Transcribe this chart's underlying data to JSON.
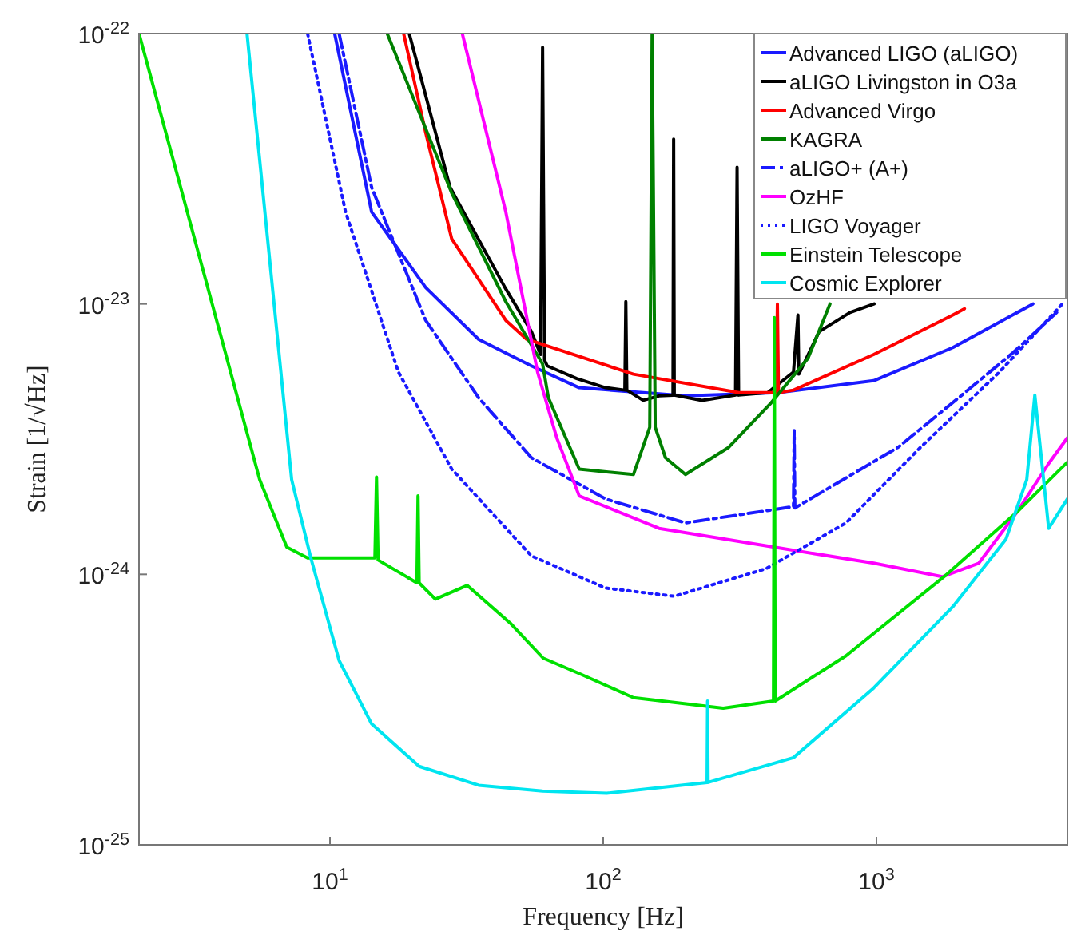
{
  "chart_data": {
    "type": "line",
    "xlabel": "Frequency [Hz]",
    "ylabel": "Strain [1/√Hz]",
    "log": "xy",
    "grid": false,
    "legend": "top right",
    "xlim": [
      2,
      5000
    ],
    "xticks": [
      {
        "value": 10,
        "label": "10$^{1}$"
      },
      {
        "value": 100,
        "label": "10$^{2}$"
      },
      {
        "value": 1000,
        "label": "10$^{3}$"
      }
    ],
    "ylim": [
      1e-25,
      1e-22
    ],
    "yticks": [
      {
        "value": 1e-25,
        "label": "10$^{-25}$"
      },
      {
        "value": 1e-24,
        "label": "10$^{-24}$"
      },
      {
        "value": 1e-23,
        "label": "10$^{-23}$"
      },
      {
        "value": 1e-22,
        "label": "10$^{-22}$"
      }
    ],
    "series": [
      {
        "name": "Advanced LIGO (aLIGO)",
        "color": "#1a1aff",
        "line_style": "solid",
        "x": [
          10.4,
          14.2,
          22.4,
          35,
          54.6,
          81.7,
          200,
          434,
          977,
          1905,
          3740
        ],
        "values": [
          1e-22,
          2.19e-23,
          1.15e-23,
          7.4e-24,
          5.9e-24,
          4.9e-24,
          4.57e-24,
          4.7e-24,
          5.2e-24,
          6.9e-24,
          1e-23
        ]
      },
      {
        "name": "aLIGO Livingston in O3a",
        "color": "#000000",
        "line_style": "solid",
        "x": [
          19.5,
          27.5,
          43.7,
          54.6,
          59,
          60,
          61,
          62.4,
          80,
          102,
          120,
          121,
          122,
          140,
          160,
          180,
          181,
          182,
          230,
          305,
          309,
          313,
          400,
          497,
          516,
          520,
          617,
          800,
          980
        ],
        "values": [
          1e-22,
          2.7e-23,
          1.15e-23,
          7.9e-24,
          6.5e-24,
          8.9e-23,
          6.2e-24,
          5.9e-24,
          5.3e-24,
          4.9e-24,
          4.8e-24,
          1.02e-23,
          4.8e-24,
          4.4e-24,
          4.57e-24,
          4.6e-24,
          4.07e-23,
          4.6e-24,
          4.4e-24,
          4.6e-24,
          3.2e-23,
          4.6e-24,
          4.7e-24,
          5.6e-24,
          9.1e-24,
          5.5e-24,
          7.9e-24,
          9.3e-24,
          1e-23
        ]
      },
      {
        "name": "Advanced Virgo",
        "color": "#ff0000",
        "line_style": "solid",
        "x": [
          18.6,
          22.4,
          27.9,
          44,
          52.5,
          129,
          314,
          430,
          434,
          438,
          497,
          977,
          1905,
          2100
        ],
        "values": [
          1e-22,
          4.3e-23,
          1.74e-23,
          8.7e-24,
          7.4e-24,
          5.5e-24,
          4.7e-24,
          4.7e-24,
          1e-23,
          4.7e-24,
          4.8e-24,
          6.5e-24,
          9.1e-24,
          9.6e-24
        ]
      },
      {
        "name": "KAGRA",
        "color": "#008000",
        "line_style": "solid",
        "x": [
          16.2,
          27.9,
          44,
          60,
          63,
          81.7,
          129,
          148,
          151,
          155,
          169,
          200,
          288,
          411,
          562,
          676
        ],
        "values": [
          1e-22,
          2.57e-23,
          1.02e-23,
          6e-24,
          4.5e-24,
          2.45e-24,
          2.34e-24,
          3.5e-24,
          1e-22,
          3.5e-24,
          2.7e-24,
          2.34e-24,
          2.95e-24,
          4.3e-24,
          6.3e-24,
          1e-23
        ]
      },
      {
        "name": "aLIGO+ (A+)",
        "color": "#1a1aff",
        "line_style": "dashed",
        "x": [
          10.8,
          14.2,
          22.4,
          35,
          54.6,
          102,
          200,
          497,
          500,
          503,
          1200,
          2000,
          3160,
          4570
        ],
        "values": [
          1e-22,
          2.7e-23,
          8.7e-24,
          4.5e-24,
          2.7e-24,
          1.9e-24,
          1.55e-24,
          1.78e-24,
          3.4e-24,
          1.76e-24,
          2.95e-24,
          4.5e-24,
          6.6e-24,
          9.3e-24
        ]
      },
      {
        "name": "OzHF",
        "color": "#ff00ff",
        "line_style": "solid",
        "x": [
          30.5,
          44,
          57.5,
          67.6,
          81.7,
          160,
          423,
          977,
          1740,
          2370,
          3270,
          4270,
          5000
        ],
        "values": [
          1e-22,
          2.19e-23,
          5.6e-24,
          3.2e-24,
          1.95e-24,
          1.48e-24,
          1.26e-24,
          1.1e-24,
          9.8e-25,
          1.1e-24,
          1.7e-24,
          2.57e-24,
          3.2e-24
        ]
      },
      {
        "name": "LIGO Voyager",
        "color": "#1a1aff",
        "line_style": "dotted",
        "x": [
          8.28,
          11.4,
          17.8,
          27.9,
          54.6,
          102,
          182,
          395,
          774,
          1450,
          2820,
          4790
        ],
        "values": [
          1e-22,
          2.19e-23,
          5.6e-24,
          2.45e-24,
          1.17e-24,
          8.9e-25,
          8.3e-25,
          1.05e-24,
          1.55e-24,
          2.95e-24,
          5.6e-24,
          1e-23
        ]
      },
      {
        "name": "Einstein Telescope",
        "color": "#00e000",
        "line_style": "solid",
        "x": [
          2,
          5.53,
          6.95,
          8.28,
          14.6,
          14.8,
          15.0,
          20.8,
          21.0,
          21.2,
          24.3,
          31.8,
          45.7,
          60.3,
          81.7,
          129,
          275,
          420,
          423,
          426,
          774,
          1810,
          3270,
          5000
        ],
        "values": [
          1e-22,
          2.24e-24,
          1.26e-24,
          1.15e-24,
          1.15e-24,
          2.29e-24,
          1.13e-24,
          9.3e-25,
          1.95e-24,
          9.3e-25,
          8.1e-25,
          9.1e-25,
          6.6e-25,
          4.9e-25,
          4.3e-25,
          3.5e-25,
          3.2e-25,
          3.4e-25,
          8.9e-24,
          3.4e-25,
          5e-25,
          1e-24,
          1.7e-24,
          2.6e-24
        ]
      },
      {
        "name": "Cosmic Explorer",
        "color": "#00e5f0",
        "line_style": "solid",
        "x": [
          4.97,
          7.24,
          8.51,
          10.8,
          14.2,
          21.2,
          35,
          60,
          103,
          240,
          241,
          242,
          497,
          977,
          1905,
          2980,
          3550,
          3800,
          4270,
          5000
        ],
        "values": [
          1e-22,
          2.24e-24,
          1.15e-24,
          4.8e-25,
          2.8e-25,
          1.95e-25,
          1.66e-25,
          1.58e-25,
          1.55e-25,
          1.7e-25,
          3.4e-25,
          1.7e-25,
          2.1e-25,
          3.8e-25,
          7.6e-25,
          1.35e-24,
          2.24e-24,
          4.6e-24,
          1.48e-24,
          1.9e-24
        ]
      }
    ]
  }
}
